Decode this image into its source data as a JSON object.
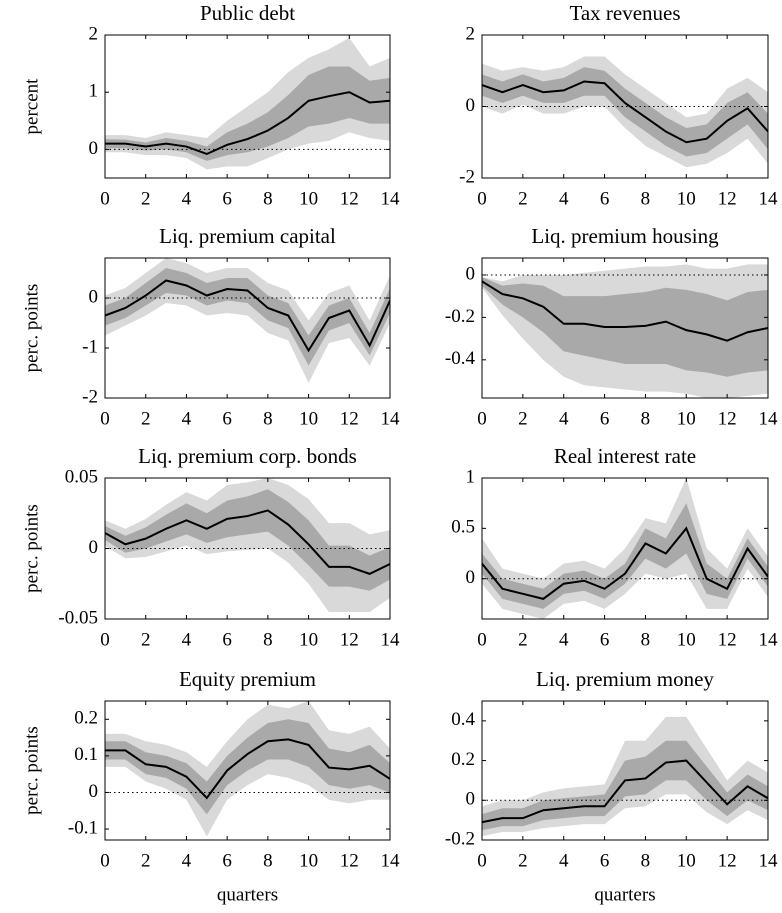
{
  "chart_data": [
    {
      "type": "line",
      "title": "Public debt",
      "ylabel": "percent",
      "x": [
        0,
        1,
        2,
        3,
        4,
        5,
        6,
        7,
        8,
        9,
        10,
        11,
        12,
        13,
        14
      ],
      "xlim": [
        0,
        14
      ],
      "xticks": [
        0,
        2,
        4,
        6,
        8,
        10,
        12,
        14
      ],
      "ylim": [
        -0.5,
        2
      ],
      "yticks": [
        0,
        1,
        2
      ],
      "zero_line": true,
      "color": "#000000",
      "values": [
        0.1,
        0.1,
        0.05,
        0.1,
        0.05,
        -0.08,
        0.08,
        0.18,
        0.33,
        0.55,
        0.85,
        0.93,
        1.0,
        0.82,
        0.85
      ],
      "bands": [
        {
          "color": "#d9d9d9",
          "lower": [
            -0.05,
            -0.05,
            -0.1,
            -0.1,
            -0.15,
            -0.35,
            -0.3,
            -0.3,
            -0.15,
            0,
            0.1,
            0.15,
            0.3,
            0.2,
            0.15
          ],
          "upper": [
            0.25,
            0.25,
            0.2,
            0.3,
            0.25,
            0.2,
            0.5,
            0.75,
            1.0,
            1.35,
            1.6,
            1.75,
            1.95,
            1.45,
            1.6
          ]
        },
        {
          "color": "#a9a9a9",
          "lower": [
            0.02,
            0.02,
            -0.02,
            0,
            -0.05,
            -0.2,
            -0.1,
            -0.05,
            0.05,
            0.2,
            0.4,
            0.45,
            0.55,
            0.45,
            0.45
          ],
          "upper": [
            0.18,
            0.17,
            0.12,
            0.2,
            0.15,
            0.05,
            0.3,
            0.45,
            0.65,
            0.95,
            1.3,
            1.45,
            1.45,
            1.2,
            1.25
          ]
        }
      ]
    },
    {
      "type": "line",
      "title": "Tax revenues",
      "x": [
        0,
        1,
        2,
        3,
        4,
        5,
        6,
        7,
        8,
        9,
        10,
        11,
        12,
        13,
        14
      ],
      "xlim": [
        0,
        14
      ],
      "xticks": [
        0,
        2,
        4,
        6,
        8,
        10,
        12,
        14
      ],
      "ylim": [
        -2,
        2
      ],
      "yticks": [
        -2,
        0,
        2
      ],
      "zero_line": true,
      "color": "#000000",
      "values": [
        0.6,
        0.4,
        0.6,
        0.4,
        0.45,
        0.7,
        0.65,
        0.1,
        -0.3,
        -0.7,
        -1.0,
        -0.9,
        -0.4,
        -0.05,
        -0.7
      ],
      "bands": [
        {
          "color": "#d9d9d9",
          "lower": [
            0,
            -0.2,
            0.05,
            -0.2,
            -0.2,
            0,
            0,
            -0.6,
            -1.1,
            -1.4,
            -1.7,
            -1.6,
            -1.3,
            -0.9,
            -1.6
          ],
          "upper": [
            1.2,
            1.0,
            1.1,
            1.0,
            1.1,
            1.4,
            1.4,
            0.9,
            0.5,
            0.1,
            -0.3,
            -0.2,
            0.5,
            0.8,
            0.4
          ]
        },
        {
          "color": "#a9a9a9",
          "lower": [
            0.3,
            0.1,
            0.3,
            0.1,
            0.1,
            0.3,
            0.3,
            -0.3,
            -0.7,
            -1.1,
            -1.4,
            -1.3,
            -0.9,
            -0.5,
            -1.2
          ],
          "upper": [
            0.9,
            0.7,
            0.9,
            0.7,
            0.8,
            1.1,
            1.0,
            0.5,
            0.1,
            -0.3,
            -0.6,
            -0.5,
            0.1,
            0.4,
            -0.2
          ]
        }
      ]
    },
    {
      "type": "line",
      "title": "Liq. premium capital",
      "ylabel": "perc. points",
      "x": [
        0,
        1,
        2,
        3,
        4,
        5,
        6,
        7,
        8,
        9,
        10,
        11,
        12,
        13,
        14
      ],
      "xlim": [
        0,
        14
      ],
      "xticks": [
        0,
        2,
        4,
        6,
        8,
        10,
        12,
        14
      ],
      "ylim": [
        -2,
        0.8
      ],
      "yticks": [
        -2,
        -1,
        0
      ],
      "zero_line": true,
      "color": "#000000",
      "values": [
        -0.35,
        -0.2,
        0.05,
        0.35,
        0.25,
        0.05,
        0.18,
        0.15,
        -0.2,
        -0.35,
        -1.05,
        -0.4,
        -0.25,
        -0.95,
        -0.05
      ],
      "bands": [
        {
          "color": "#d9d9d9",
          "lower": [
            -0.75,
            -0.55,
            -0.35,
            -0.1,
            -0.15,
            -0.35,
            -0.3,
            -0.35,
            -0.7,
            -0.85,
            -1.7,
            -0.9,
            -0.8,
            -1.35,
            -0.5
          ],
          "upper": [
            0.05,
            0.2,
            0.5,
            0.8,
            0.7,
            0.5,
            0.6,
            0.6,
            0.3,
            0.15,
            -0.45,
            0.1,
            0.25,
            -0.45,
            0.45
          ]
        },
        {
          "color": "#a9a9a9",
          "lower": [
            -0.55,
            -0.4,
            -0.15,
            0.1,
            0.05,
            -0.15,
            -0.05,
            -0.1,
            -0.45,
            -0.6,
            -1.35,
            -0.65,
            -0.5,
            -1.15,
            -0.3
          ],
          "upper": [
            -0.15,
            0,
            0.3,
            0.6,
            0.5,
            0.3,
            0.4,
            0.4,
            0.05,
            -0.1,
            -0.75,
            -0.15,
            0,
            -0.7,
            0.2
          ]
        }
      ]
    },
    {
      "type": "line",
      "title": "Liq. premium housing",
      "x": [
        0,
        1,
        2,
        3,
        4,
        5,
        6,
        7,
        8,
        9,
        10,
        11,
        12,
        13,
        14
      ],
      "xlim": [
        0,
        14
      ],
      "xticks": [
        0,
        2,
        4,
        6,
        8,
        10,
        12,
        14
      ],
      "ylim": [
        -0.58,
        0.08
      ],
      "yticks": [
        -0.4,
        -0.2,
        0
      ],
      "zero_line": true,
      "color": "#000000",
      "values": [
        -0.03,
        -0.09,
        -0.11,
        -0.15,
        -0.23,
        -0.23,
        -0.245,
        -0.245,
        -0.24,
        -0.22,
        -0.26,
        -0.28,
        -0.31,
        -0.27,
        -0.25
      ],
      "bands": [
        {
          "color": "#d9d9d9",
          "lower": [
            -0.06,
            -0.19,
            -0.3,
            -0.4,
            -0.48,
            -0.52,
            -0.53,
            -0.54,
            -0.55,
            -0.55,
            -0.56,
            -0.58,
            -0.58,
            -0.57,
            -0.56
          ],
          "upper": [
            -0.01,
            -0.03,
            0,
            0,
            0,
            0.01,
            0.02,
            0.03,
            0.04,
            0.04,
            0.05,
            0.03,
            0.03,
            0.05,
            0.05
          ]
        },
        {
          "color": "#a9a9a9",
          "lower": [
            -0.05,
            -0.14,
            -0.2,
            -0.27,
            -0.36,
            -0.38,
            -0.4,
            -0.42,
            -0.42,
            -0.42,
            -0.45,
            -0.46,
            -0.48,
            -0.46,
            -0.45
          ],
          "upper": [
            -0.01,
            -0.05,
            -0.04,
            -0.05,
            -0.1,
            -0.1,
            -0.1,
            -0.09,
            -0.08,
            -0.06,
            -0.07,
            -0.09,
            -0.12,
            -0.08,
            -0.07
          ]
        }
      ]
    },
    {
      "type": "line",
      "title": "Liq. premium corp. bonds",
      "ylabel": "perc. points",
      "x": [
        0,
        1,
        2,
        3,
        4,
        5,
        6,
        7,
        8,
        9,
        10,
        11,
        12,
        13,
        14
      ],
      "xlim": [
        0,
        14
      ],
      "xticks": [
        0,
        2,
        4,
        6,
        8,
        10,
        12,
        14
      ],
      "ylim": [
        -0.05,
        0.05
      ],
      "yticks": [
        -0.05,
        0,
        0.05
      ],
      "zero_line": true,
      "color": "#000000",
      "values": [
        0.011,
        0.003,
        0.007,
        0.014,
        0.02,
        0.014,
        0.021,
        0.023,
        0.027,
        0.017,
        0.003,
        -0.013,
        -0.013,
        -0.018,
        -0.011
      ],
      "bands": [
        {
          "color": "#d9d9d9",
          "lower": [
            0.002,
            -0.007,
            -0.006,
            -0.002,
            0.002,
            -0.004,
            -0.002,
            -0.001,
            0,
            -0.01,
            -0.025,
            -0.045,
            -0.045,
            -0.045,
            -0.035
          ],
          "upper": [
            0.02,
            0.014,
            0.021,
            0.031,
            0.04,
            0.034,
            0.045,
            0.047,
            0.05,
            0.045,
            0.035,
            0.018,
            0.018,
            0.01,
            0.013
          ]
        },
        {
          "color": "#a9a9a9",
          "lower": [
            0.006,
            -0.003,
            0,
            0.005,
            0.01,
            0.004,
            0.008,
            0.01,
            0.012,
            0.002,
            -0.012,
            -0.027,
            -0.027,
            -0.03,
            -0.022
          ],
          "upper": [
            0.016,
            0.009,
            0.015,
            0.024,
            0.032,
            0.025,
            0.034,
            0.037,
            0.042,
            0.033,
            0.02,
            0.002,
            0.002,
            -0.005,
            0.001
          ]
        }
      ]
    },
    {
      "type": "line",
      "title": "Real interest rate",
      "x": [
        0,
        1,
        2,
        3,
        4,
        5,
        6,
        7,
        8,
        9,
        10,
        11,
        12,
        13,
        14
      ],
      "xlim": [
        0,
        14
      ],
      "xticks": [
        0,
        2,
        4,
        6,
        8,
        10,
        12,
        14
      ],
      "ylim": [
        -0.4,
        1
      ],
      "yticks": [
        0,
        0.5,
        1
      ],
      "zero_line": true,
      "color": "#000000",
      "values": [
        0.15,
        -0.1,
        -0.15,
        -0.2,
        -0.05,
        -0.02,
        -0.1,
        0.05,
        0.35,
        0.25,
        0.5,
        0,
        -0.1,
        0.3,
        0.02
      ],
      "bands": [
        {
          "color": "#d9d9d9",
          "lower": [
            -0.05,
            -0.3,
            -0.35,
            -0.4,
            -0.25,
            -0.22,
            -0.3,
            -0.15,
            0.05,
            0,
            0.05,
            -0.3,
            -0.3,
            0.1,
            -0.18
          ],
          "upper": [
            0.4,
            0.1,
            0.05,
            0,
            0.15,
            0.18,
            0.1,
            0.3,
            0.6,
            0.55,
            1.0,
            0.3,
            0.1,
            0.5,
            0.22
          ]
        },
        {
          "color": "#a9a9a9",
          "lower": [
            0.05,
            -0.2,
            -0.25,
            -0.3,
            -0.15,
            -0.12,
            -0.2,
            -0.05,
            0.2,
            0.1,
            0.25,
            -0.15,
            -0.2,
            0.2,
            -0.08
          ],
          "upper": [
            0.25,
            0,
            -0.05,
            -0.1,
            0.05,
            0.08,
            0,
            0.15,
            0.5,
            0.4,
            0.75,
            0.15,
            0,
            0.4,
            0.12
          ]
        }
      ]
    },
    {
      "type": "line",
      "title": "Equity premium",
      "ylabel": "perc. points",
      "xlabel": "quarters",
      "x": [
        0,
        1,
        2,
        3,
        4,
        5,
        6,
        7,
        8,
        9,
        10,
        11,
        12,
        13,
        14
      ],
      "xlim": [
        0,
        14
      ],
      "xticks": [
        0,
        2,
        4,
        6,
        8,
        10,
        12,
        14
      ],
      "ylim": [
        -0.13,
        0.25
      ],
      "yticks": [
        -0.1,
        0,
        0.1,
        0.2
      ],
      "zero_line": true,
      "color": "#000000",
      "values": [
        0.115,
        0.115,
        0.077,
        0.07,
        0.043,
        -0.015,
        0.06,
        0.105,
        0.14,
        0.145,
        0.13,
        0.068,
        0.063,
        0.073,
        0.037
      ],
      "bands": [
        {
          "color": "#d9d9d9",
          "lower": [
            0.07,
            0.07,
            0.03,
            0.01,
            -0.02,
            -0.12,
            -0.02,
            0.02,
            0.05,
            0.04,
            0.02,
            -0.02,
            -0.03,
            -0.02,
            -0.02
          ],
          "upper": [
            0.16,
            0.16,
            0.14,
            0.13,
            0.11,
            0.07,
            0.14,
            0.2,
            0.24,
            0.23,
            0.25,
            0.17,
            0.16,
            0.18,
            0.12
          ]
        },
        {
          "color": "#a9a9a9",
          "lower": [
            0.09,
            0.09,
            0.05,
            0.04,
            0.01,
            -0.06,
            0.02,
            0.06,
            0.09,
            0.09,
            0.07,
            0.02,
            0.01,
            0.02,
            0
          ],
          "upper": [
            0.14,
            0.14,
            0.11,
            0.1,
            0.08,
            0.03,
            0.1,
            0.15,
            0.19,
            0.2,
            0.19,
            0.12,
            0.11,
            0.13,
            0.08
          ]
        }
      ]
    },
    {
      "type": "line",
      "title": "Liq. premium money",
      "xlabel": "quarters",
      "x": [
        0,
        1,
        2,
        3,
        4,
        5,
        6,
        7,
        8,
        9,
        10,
        11,
        12,
        13,
        14
      ],
      "xlim": [
        0,
        14
      ],
      "xticks": [
        0,
        2,
        4,
        6,
        8,
        10,
        12,
        14
      ],
      "ylim": [
        -0.2,
        0.5
      ],
      "yticks": [
        -0.2,
        0,
        0.2,
        0.4
      ],
      "zero_line": true,
      "color": "#000000",
      "values": [
        -0.11,
        -0.09,
        -0.09,
        -0.05,
        -0.04,
        -0.03,
        -0.03,
        0.1,
        0.11,
        0.19,
        0.2,
        0.09,
        -0.02,
        0.07,
        0.01
      ],
      "bands": [
        {
          "color": "#d9d9d9",
          "lower": [
            -0.18,
            -0.16,
            -0.16,
            -0.14,
            -0.13,
            -0.12,
            -0.12,
            -0.04,
            -0.03,
            0.03,
            0.03,
            -0.06,
            -0.12,
            -0.05,
            -0.1
          ],
          "upper": [
            -0.03,
            0,
            0,
            0.04,
            0.06,
            0.07,
            0.08,
            0.3,
            0.3,
            0.42,
            0.42,
            0.26,
            0.1,
            0.2,
            0.14
          ]
        },
        {
          "color": "#a9a9a9",
          "lower": [
            -0.15,
            -0.13,
            -0.13,
            -0.1,
            -0.09,
            -0.08,
            -0.08,
            0.02,
            0.03,
            0.1,
            0.1,
            0,
            -0.08,
            0,
            -0.05
          ],
          "upper": [
            -0.07,
            -0.04,
            -0.04,
            0,
            0.01,
            0.02,
            0.03,
            0.2,
            0.22,
            0.3,
            0.3,
            0.17,
            0.04,
            0.13,
            0.07
          ]
        }
      ]
    }
  ]
}
